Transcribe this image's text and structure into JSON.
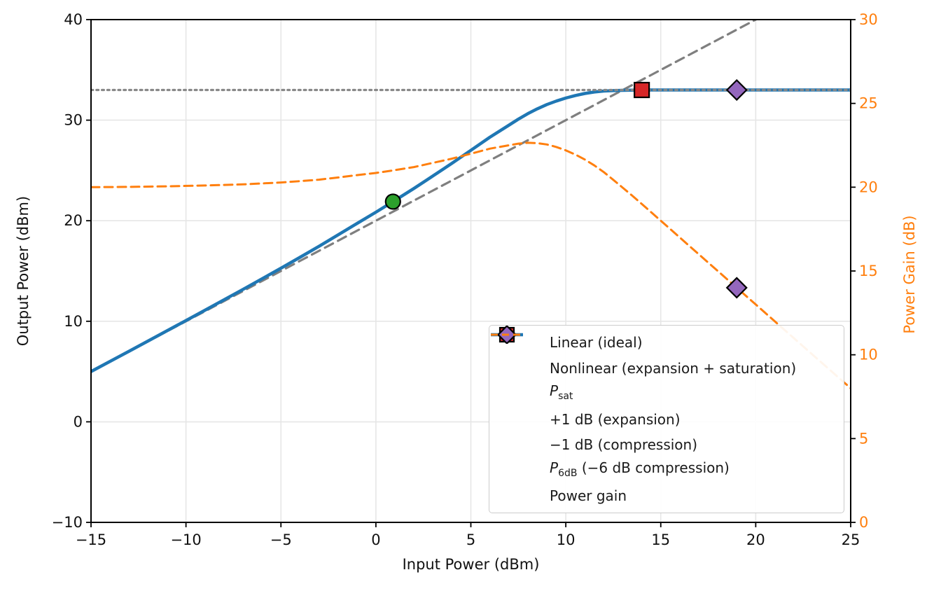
{
  "chart_data": {
    "type": "line",
    "title": "",
    "xlabel": "Input Power (dBm)",
    "ylabel_left": "Output Power (dBm)",
    "ylabel_right": "Power Gain (dB)",
    "xlim": [
      -15,
      25
    ],
    "ylim_left": [
      -10,
      40
    ],
    "ylim_right": [
      0,
      30
    ],
    "xticks": [
      -15,
      -10,
      -5,
      0,
      5,
      10,
      15,
      20,
      25
    ],
    "yticks_left": [
      -10,
      0,
      10,
      20,
      30,
      40
    ],
    "yticks_right": [
      0,
      5,
      10,
      15,
      20,
      25,
      30
    ],
    "grid": true,
    "legend_position": "lower right",
    "colors": {
      "blue": "#1f77b4",
      "orange": "#ff7f0e",
      "gray_dashed": "#7f7f7f",
      "gray_dotted": "#888888",
      "green": "#2ca02c",
      "red": "#d62728",
      "purple": "#9467bd",
      "grid": "#e6e6e6",
      "spine": "#000000",
      "tick_label": "#111111"
    },
    "series": [
      {
        "id": "linear-ideal",
        "name": "Linear (ideal)",
        "axis": "left",
        "style": "dashed",
        "color": "#7f7f7f",
        "width": 3.2,
        "dash": "13 8",
        "x": [
          -15,
          25
        ],
        "y": [
          5,
          45
        ]
      },
      {
        "id": "nonlinear",
        "name": "Nonlinear (expansion + saturation)",
        "axis": "left",
        "style": "solid",
        "color": "#1f77b4",
        "width": 4.5,
        "dash": "",
        "x": [
          -15,
          -13,
          -11,
          -9,
          -7,
          -5,
          -4,
          -3,
          -2,
          -1,
          0,
          0.9,
          2,
          3,
          4,
          5,
          6,
          7,
          7.5,
          8,
          8.5,
          9,
          9.5,
          10,
          10.5,
          11,
          11.5,
          12,
          12.5,
          13,
          13.5,
          14,
          15,
          17,
          19,
          21,
          23,
          25
        ],
        "y": [
          5,
          7.02,
          9.05,
          11.1,
          13.17,
          15.28,
          16.36,
          17.45,
          18.58,
          19.72,
          20.85,
          21.9,
          23.2,
          24.45,
          25.7,
          27,
          28.3,
          29.5,
          30.1,
          30.65,
          31.13,
          31.55,
          31.9,
          32.2,
          32.45,
          32.65,
          32.8,
          32.9,
          32.94,
          32.97,
          32.99,
          33,
          33,
          33,
          33,
          33,
          33,
          33
        ]
      },
      {
        "id": "psat",
        "name": "P_sat",
        "axis": "left",
        "style": "dotted",
        "color": "#888888",
        "width": 3.2,
        "dash": "2.8 5",
        "x": [
          -15,
          25
        ],
        "y": [
          33,
          33
        ]
      },
      {
        "id": "power-gain",
        "name": "Power gain",
        "axis": "right",
        "style": "dashed",
        "color": "#ff7f0e",
        "width": 3,
        "dash": "12 7",
        "x": [
          -15,
          -13,
          -11,
          -9,
          -7,
          -5,
          -4,
          -3,
          -2,
          -1,
          0,
          0.9,
          2,
          3,
          4,
          5,
          6,
          7,
          7.5,
          8,
          8.5,
          9,
          9.5,
          10,
          10.5,
          11,
          11.5,
          12,
          12.5,
          13,
          13.5,
          14,
          15,
          17,
          19,
          21,
          23,
          25
        ],
        "y": [
          20,
          20.02,
          20.05,
          20.1,
          20.17,
          20.28,
          20.36,
          20.45,
          20.58,
          20.72,
          20.85,
          21,
          21.2,
          21.45,
          21.7,
          22,
          22.3,
          22.5,
          22.6,
          22.65,
          22.63,
          22.55,
          22.4,
          22.2,
          21.95,
          21.65,
          21.3,
          20.9,
          20.44,
          19.97,
          19.49,
          19,
          18,
          16,
          14,
          12,
          10,
          8
        ]
      }
    ],
    "markers": [
      {
        "id": "p1db-expansion",
        "name": "+1 dB (expansion)",
        "shape": "circle",
        "color": "#2ca02c",
        "axis": "left",
        "x": 0.9,
        "y": 21.9
      },
      {
        "id": "m1db-compression",
        "name": "−1 dB (compression)",
        "shape": "square",
        "color": "#d62728",
        "axis": "left",
        "x": 14,
        "y": 33
      },
      {
        "id": "p6db-output",
        "name": "P_6dB output",
        "shape": "diamond",
        "color": "#9467bd",
        "axis": "left",
        "x": 19,
        "y": 33
      },
      {
        "id": "p6db-gain",
        "name": "P_6dB gain",
        "shape": "diamond",
        "color": "#9467bd",
        "axis": "right",
        "x": 19,
        "y": 14
      }
    ],
    "legend": [
      {
        "id": "linear-ideal",
        "sample": "line-dashed-gray",
        "label": "Linear (ideal)"
      },
      {
        "id": "nonlinear",
        "sample": "line-solid-blue",
        "label": "Nonlinear (expansion + saturation)"
      },
      {
        "id": "psat",
        "sample": "line-dotted-gray",
        "label_main": "P",
        "label_sub": "sat",
        "label_rest": ""
      },
      {
        "id": "plus1db",
        "sample": "marker-circle-green",
        "label": "+1 dB (expansion)"
      },
      {
        "id": "minus1db",
        "sample": "marker-square-red",
        "label": "−1 dB (compression)"
      },
      {
        "id": "p6db",
        "sample": "marker-diamond-purple",
        "label_main": "P",
        "label_sub": "6dB",
        "label_rest": " (−6 dB compression)"
      },
      {
        "id": "power-gain",
        "sample": "line-dashed-orange",
        "label": "Power gain"
      }
    ]
  }
}
